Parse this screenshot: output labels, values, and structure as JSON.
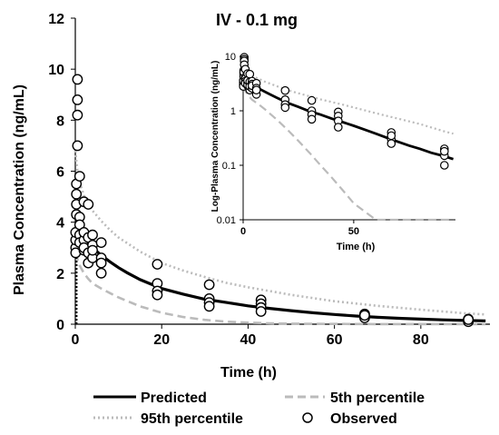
{
  "chart_data": [
    {
      "type": "scatter",
      "title": "IV - 0.1 mg",
      "xlabel": "Time (h)",
      "ylabel": "Plasma Concentration (ng/mL)",
      "xlim": [
        0,
        96
      ],
      "ylim": [
        0,
        12
      ],
      "xticks": [
        "0",
        "20",
        "40",
        "60",
        "80"
      ],
      "xtick_values": [
        0,
        20,
        40,
        60,
        80
      ],
      "yticks": [
        "0",
        "2",
        "4",
        "6",
        "8",
        "10",
        "12"
      ],
      "ytick_values": [
        0,
        2,
        4,
        6,
        8,
        10,
        12
      ],
      "grid": false,
      "legend_position": "bottom",
      "series": [
        {
          "name": "Predicted",
          "style": "solid",
          "color": "#000000",
          "x": [
            0,
            0.25,
            0.5,
            1,
            1.5,
            2,
            3,
            4,
            5,
            6,
            8,
            10,
            12,
            15,
            20,
            25,
            30,
            35,
            40,
            45,
            50,
            55,
            60,
            65,
            70,
            75,
            80,
            85,
            90,
            95
          ],
          "y": [
            4.8,
            4.55,
            4.3,
            3.95,
            3.7,
            3.5,
            3.22,
            3.02,
            2.85,
            2.7,
            2.45,
            2.22,
            2.02,
            1.75,
            1.4,
            1.18,
            0.98,
            0.85,
            0.72,
            0.62,
            0.53,
            0.45,
            0.38,
            0.32,
            0.27,
            0.23,
            0.2,
            0.17,
            0.15,
            0.13
          ]
        },
        {
          "name": "5th percentile",
          "style": "dashed",
          "color": "#bbbbbb",
          "x": [
            0,
            0.5,
            1,
            2,
            3,
            4,
            6,
            8,
            10,
            15,
            20,
            25,
            30,
            35,
            40,
            45,
            50,
            60,
            70,
            80,
            90,
            95
          ],
          "y": [
            2.8,
            2.55,
            2.3,
            2.0,
            1.78,
            1.6,
            1.4,
            1.22,
            1.05,
            0.7,
            0.45,
            0.28,
            0.17,
            0.1,
            0.06,
            0.035,
            0.02,
            0.01,
            0.005,
            0.002,
            0.001,
            0.0005
          ]
        },
        {
          "name": "95th percentile",
          "style": "dotted",
          "color": "#bbbbbb",
          "x": [
            0,
            0.5,
            1,
            2,
            3,
            4,
            6,
            8,
            10,
            15,
            20,
            25,
            30,
            35,
            40,
            45,
            50,
            60,
            70,
            80,
            90,
            95
          ],
          "y": [
            6.8,
            6.0,
            5.55,
            5.05,
            4.7,
            4.45,
            4.05,
            3.7,
            3.4,
            2.85,
            2.4,
            2.1,
            1.85,
            1.62,
            1.45,
            1.3,
            1.15,
            0.9,
            0.72,
            0.57,
            0.43,
            0.38
          ]
        },
        {
          "name": "Observed",
          "style": "markers",
          "color": "#000000",
          "x": [
            0.08,
            0.08,
            0.08,
            0.08,
            0.25,
            0.25,
            0.25,
            0.25,
            0.5,
            0.5,
            0.5,
            0.5,
            1,
            1,
            1,
            1,
            1,
            2,
            2,
            2,
            2,
            2,
            3,
            3,
            3,
            3,
            4,
            4,
            4,
            4,
            6,
            6,
            6,
            6,
            19,
            19,
            19,
            19,
            31,
            31,
            31,
            31,
            43,
            43,
            43,
            43,
            67,
            67,
            67,
            67,
            91,
            91,
            91,
            91
          ],
          "y": [
            3.0,
            3.3,
            2.8,
            3.6,
            5.5,
            4.7,
            4.3,
            5.1,
            9.6,
            8.8,
            8.2,
            7.0,
            5.8,
            4.2,
            3.9,
            3.5,
            3.2,
            4.8,
            3.3,
            2.9,
            3.0,
            3.6,
            4.7,
            3.4,
            2.4,
            2.8,
            3.5,
            2.6,
            3.1,
            2.9,
            3.2,
            2.6,
            2.0,
            2.4,
            2.35,
            1.6,
            1.3,
            1.15,
            1.55,
            1.0,
            0.85,
            0.7,
            0.95,
            0.8,
            0.65,
            0.5,
            0.4,
            0.3,
            0.25,
            0.35,
            0.2,
            0.15,
            0.1,
            0.18
          ]
        }
      ]
    },
    {
      "type": "scatter",
      "xlabel": "Time (h)",
      "ylabel": "Log-Plasma Concentration (ng/mL)",
      "yscale": "log",
      "xlim": [
        0,
        96
      ],
      "ylim": [
        0.01,
        10
      ],
      "xticks": [
        "0",
        "50"
      ],
      "xtick_values": [
        0,
        50
      ],
      "yticks": [
        "0.01",
        "0.1",
        "1",
        "10"
      ],
      "ytick_values": [
        0.01,
        0.1,
        1,
        10
      ],
      "grid": false,
      "series_ref": "same as main chart"
    }
  ],
  "legend": {
    "predicted": "Predicted",
    "p5": "5th percentile",
    "p95": "95th percentile",
    "observed": "Observed"
  }
}
